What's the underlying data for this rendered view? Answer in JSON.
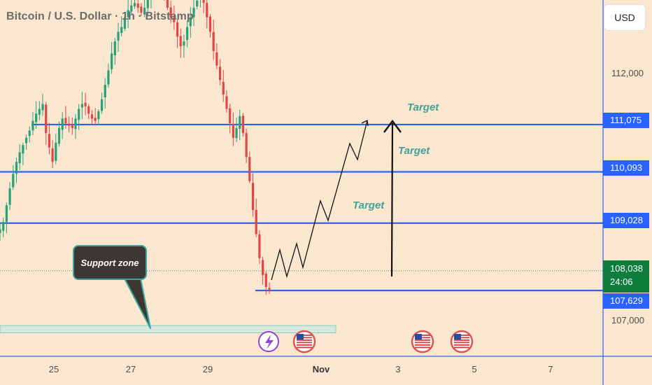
{
  "header": {
    "title": "Bitcoin / U.S. Dollar · 1h · Bitstamp",
    "currency_button": "USD"
  },
  "colors": {
    "background": "#fbe7cf",
    "level_line": "#2962ff",
    "up_candle": "#26a17a",
    "down_candle": "#e04646",
    "target_text": "#3fa39a",
    "support_fill": "#bfe9e6",
    "current_price": "#0f7d3b"
  },
  "price_axis": {
    "ticks": [
      "112,000",
      "107,000"
    ]
  },
  "time_axis": {
    "ticks": [
      "25",
      "27",
      "29",
      "Nov",
      "3",
      "5",
      "7"
    ],
    "bold": "Nov"
  },
  "levels": [
    {
      "price": 111075,
      "label": "111,075"
    },
    {
      "price": 110093,
      "label": "110,093"
    },
    {
      "price": 109028,
      "label": "109,028"
    },
    {
      "price": 107629,
      "label": "107,629"
    }
  ],
  "current_price": {
    "label": "108,038",
    "countdown": "24:06"
  },
  "annotations": {
    "target_1": "Target",
    "target_2": "Target",
    "target_3": "Target",
    "support_label": "Support zone"
  },
  "event_icons": [
    "bolt-icon",
    "us-flag-icon",
    "us-flag-icon",
    "us-flag-icon"
  ],
  "chart_data": {
    "type": "candlestick",
    "title": "Bitcoin / U.S. Dollar · 1h · Bitstamp",
    "symbol": "BTC/USD",
    "interval": "1h",
    "exchange": "Bitstamp",
    "y_ticks": [
      112000,
      107000
    ],
    "x_ticks": [
      "25",
      "27",
      "29",
      "Nov",
      "3",
      "5",
      "7"
    ],
    "horizontal_levels": [
      111075,
      110093,
      109028,
      107629
    ],
    "current_price": 108038,
    "support_zone": [
      106750,
      106900
    ],
    "price_path_keypoints": [
      108000,
      107630,
      110090,
      111075
    ],
    "series": [
      {
        "values": [
          108900,
          109050,
          109400,
          109750,
          110050,
          110300,
          110500,
          110650,
          110800,
          110950,
          111150,
          111300,
          111400,
          111500,
          110900,
          110600,
          110300,
          110700,
          111000,
          111200,
          111100,
          111050,
          111000,
          111200,
          111400,
          111500,
          111450,
          111300,
          111200,
          111150,
          111350,
          111600,
          111900,
          112200,
          112550,
          112800,
          113000,
          113100,
          113300,
          113450,
          113550,
          113600,
          113500,
          113400,
          113500,
          113700,
          113900,
          114100,
          114050,
          113900,
          113700,
          113500,
          113300,
          113200,
          112900,
          112700,
          112800,
          113100,
          113300,
          113500,
          113650,
          113800,
          113600,
          113300,
          113000,
          112600,
          112300,
          112000,
          111700,
          111400,
          111100,
          110800,
          111000,
          111250,
          110900,
          110400,
          109900,
          109300,
          108800,
          108300,
          107950,
          107700,
          107650
        ]
      }
    ]
  }
}
